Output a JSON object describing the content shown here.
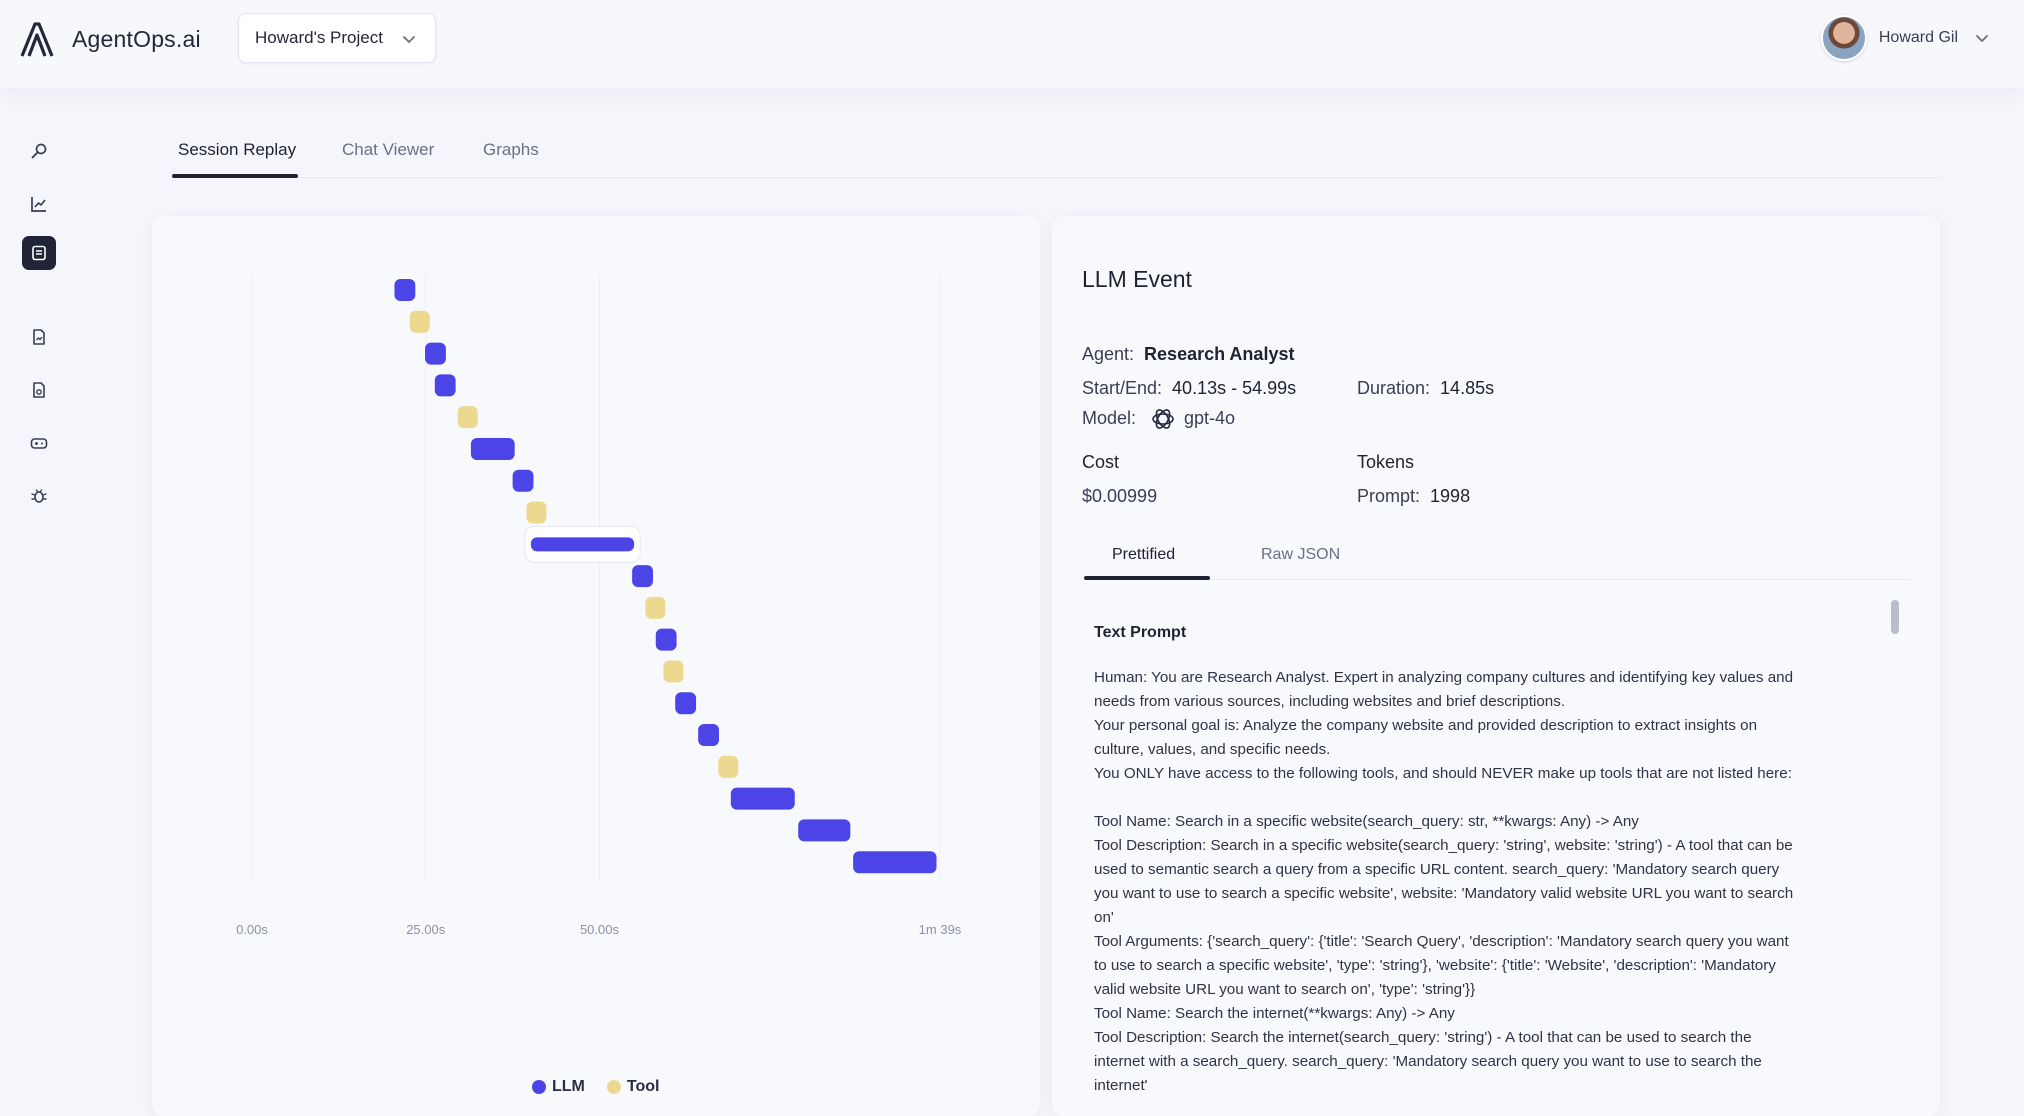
{
  "header": {
    "logo_text": "AgentOps.ai",
    "project": "Howard's Project",
    "user_name": "Howard Gil"
  },
  "sidebar": {
    "items": [
      {
        "icon": "search-icon"
      },
      {
        "icon": "chart-line-icon"
      },
      {
        "icon": "session-icon",
        "active": true
      },
      {
        "icon": "report-icon"
      },
      {
        "icon": "document-icon"
      },
      {
        "icon": "gamepad-icon"
      },
      {
        "icon": "bug-icon"
      }
    ]
  },
  "tabs": [
    {
      "label": "Session Replay",
      "active": true
    },
    {
      "label": "Chat Viewer"
    },
    {
      "label": "Graphs"
    }
  ],
  "chart_data": {
    "type": "gantt",
    "x_ticks": [
      "0.00s",
      "25.00s",
      "50.00s",
      "1m 39s"
    ],
    "xlim": [
      0,
      99
    ],
    "legend": [
      {
        "name": "LLM",
        "color": "#4b44e6"
      },
      {
        "name": "Tool",
        "color": "#ecd88e"
      }
    ],
    "events": [
      {
        "type": "LLM",
        "start": 20.5,
        "end": 23.5
      },
      {
        "type": "Tool",
        "start": 22.7,
        "end": 25.2
      },
      {
        "type": "LLM",
        "start": 24.9,
        "end": 27.9
      },
      {
        "type": "LLM",
        "start": 26.3,
        "end": 29.3
      },
      {
        "type": "Tool",
        "start": 29.6,
        "end": 32.1
      },
      {
        "type": "LLM",
        "start": 31.5,
        "end": 37.8
      },
      {
        "type": "LLM",
        "start": 37.5,
        "end": 40.5
      },
      {
        "type": "Tool",
        "start": 39.5,
        "end": 42.0
      },
      {
        "type": "LLM",
        "start": 40.13,
        "end": 54.99,
        "selected": true
      },
      {
        "type": "LLM",
        "start": 54.7,
        "end": 57.7
      },
      {
        "type": "Tool",
        "start": 56.6,
        "end": 59.1
      },
      {
        "type": "LLM",
        "start": 58.1,
        "end": 61.1
      },
      {
        "type": "Tool",
        "start": 59.2,
        "end": 61.7
      },
      {
        "type": "LLM",
        "start": 60.9,
        "end": 63.9
      },
      {
        "type": "LLM",
        "start": 64.2,
        "end": 67.2
      },
      {
        "type": "Tool",
        "start": 67.1,
        "end": 69.6
      },
      {
        "type": "LLM",
        "start": 68.9,
        "end": 78.1
      },
      {
        "type": "LLM",
        "start": 78.6,
        "end": 86.1
      },
      {
        "type": "LLM",
        "start": 86.5,
        "end": 98.5
      }
    ]
  },
  "event": {
    "title": "LLM Event",
    "agent_label": "Agent:",
    "agent": "Research Analyst",
    "startend_label": "Start/End:",
    "startend": "40.13s - 54.99s",
    "duration_label": "Duration:",
    "duration": "14.85s",
    "model_label": "Model:",
    "model": "gpt-4o",
    "cost_label": "Cost",
    "cost": "$0.00999",
    "tokens_label": "Tokens",
    "prompt_label": "Prompt:",
    "prompt_tokens": "1998",
    "subtabs": [
      {
        "label": "Prettified",
        "active": true
      },
      {
        "label": "Raw JSON"
      }
    ],
    "text_prompt_title": "Text Prompt",
    "text_prompt": "Human: You are Research Analyst. Expert in analyzing company cultures and identifying key values and\nneeds from various sources, including websites and brief descriptions.\nYour personal goal is: Analyze the company website and provided description to extract insights on\nculture, values, and specific needs.\nYou ONLY have access to the following tools, and should NEVER make up tools that are not listed here:\n\nTool Name: Search in a specific website(search_query: str, **kwargs: Any) -> Any\nTool Description: Search in a specific website(search_query: 'string', website: 'string') - A tool that can be\nused to semantic search a query from a specific URL content. search_query: 'Mandatory search query\nyou want to use to search a specific website', website: 'Mandatory valid website URL you want to search\non'\nTool Arguments: {'search_query': {'title': 'Search Query', 'description': 'Mandatory search query you want\nto use to search a specific website', 'type': 'string'}, 'website': {'title': 'Website', 'description': 'Mandatory\nvalid website URL you want to search on', 'type': 'string'}}\nTool Name: Search the internet(**kwargs: Any) -> Any\nTool Description: Search the internet(search_query: 'string') - A tool that can be used to search the\ninternet with a search_query. search_query: 'Mandatory search query you want to use to search the\ninternet'"
  }
}
